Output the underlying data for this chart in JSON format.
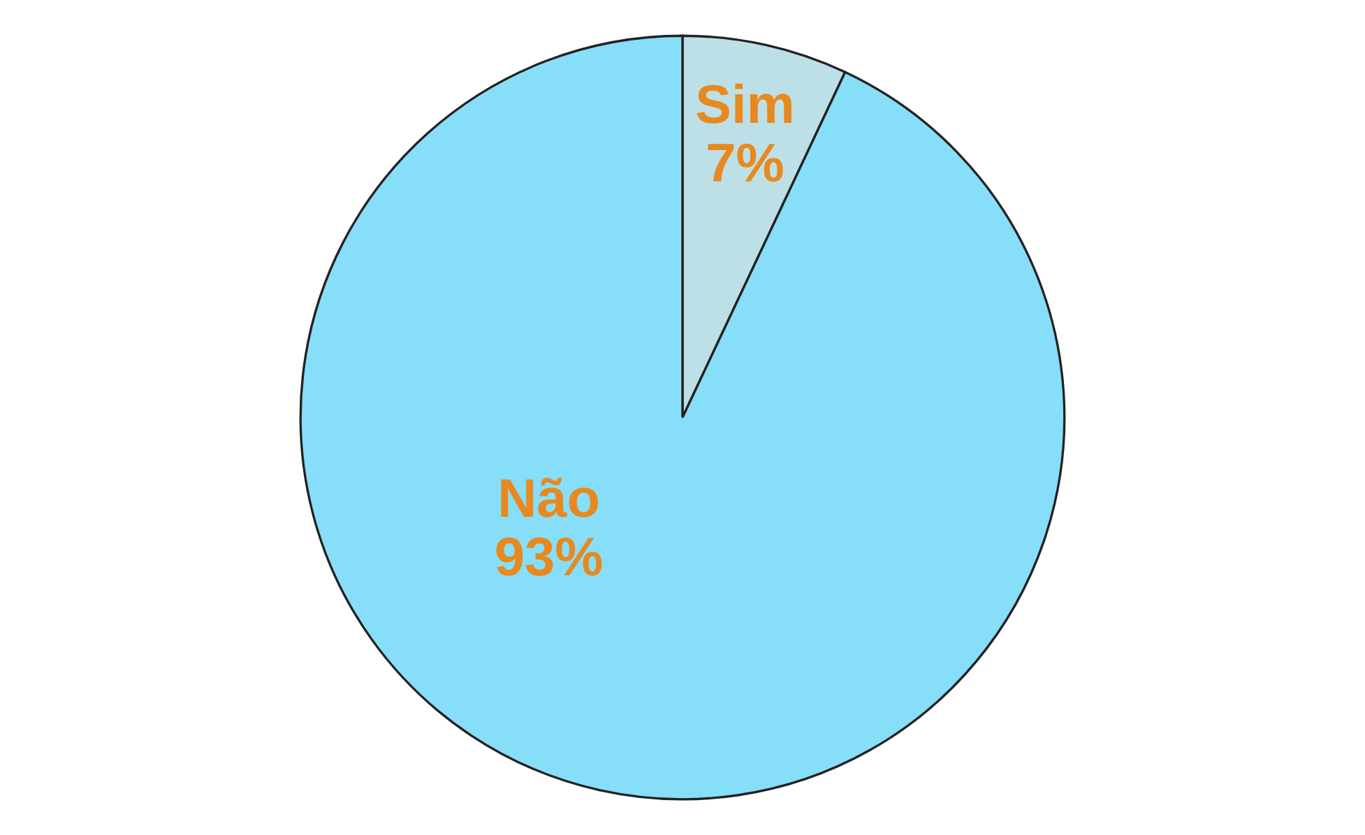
{
  "chart_data": {
    "type": "pie",
    "categories": [
      "Sim",
      "Não"
    ],
    "values": [
      7,
      93
    ],
    "colors": [
      "#bde0e6",
      "#87def8"
    ],
    "value_labels": [
      "7%",
      "93%"
    ]
  }
}
